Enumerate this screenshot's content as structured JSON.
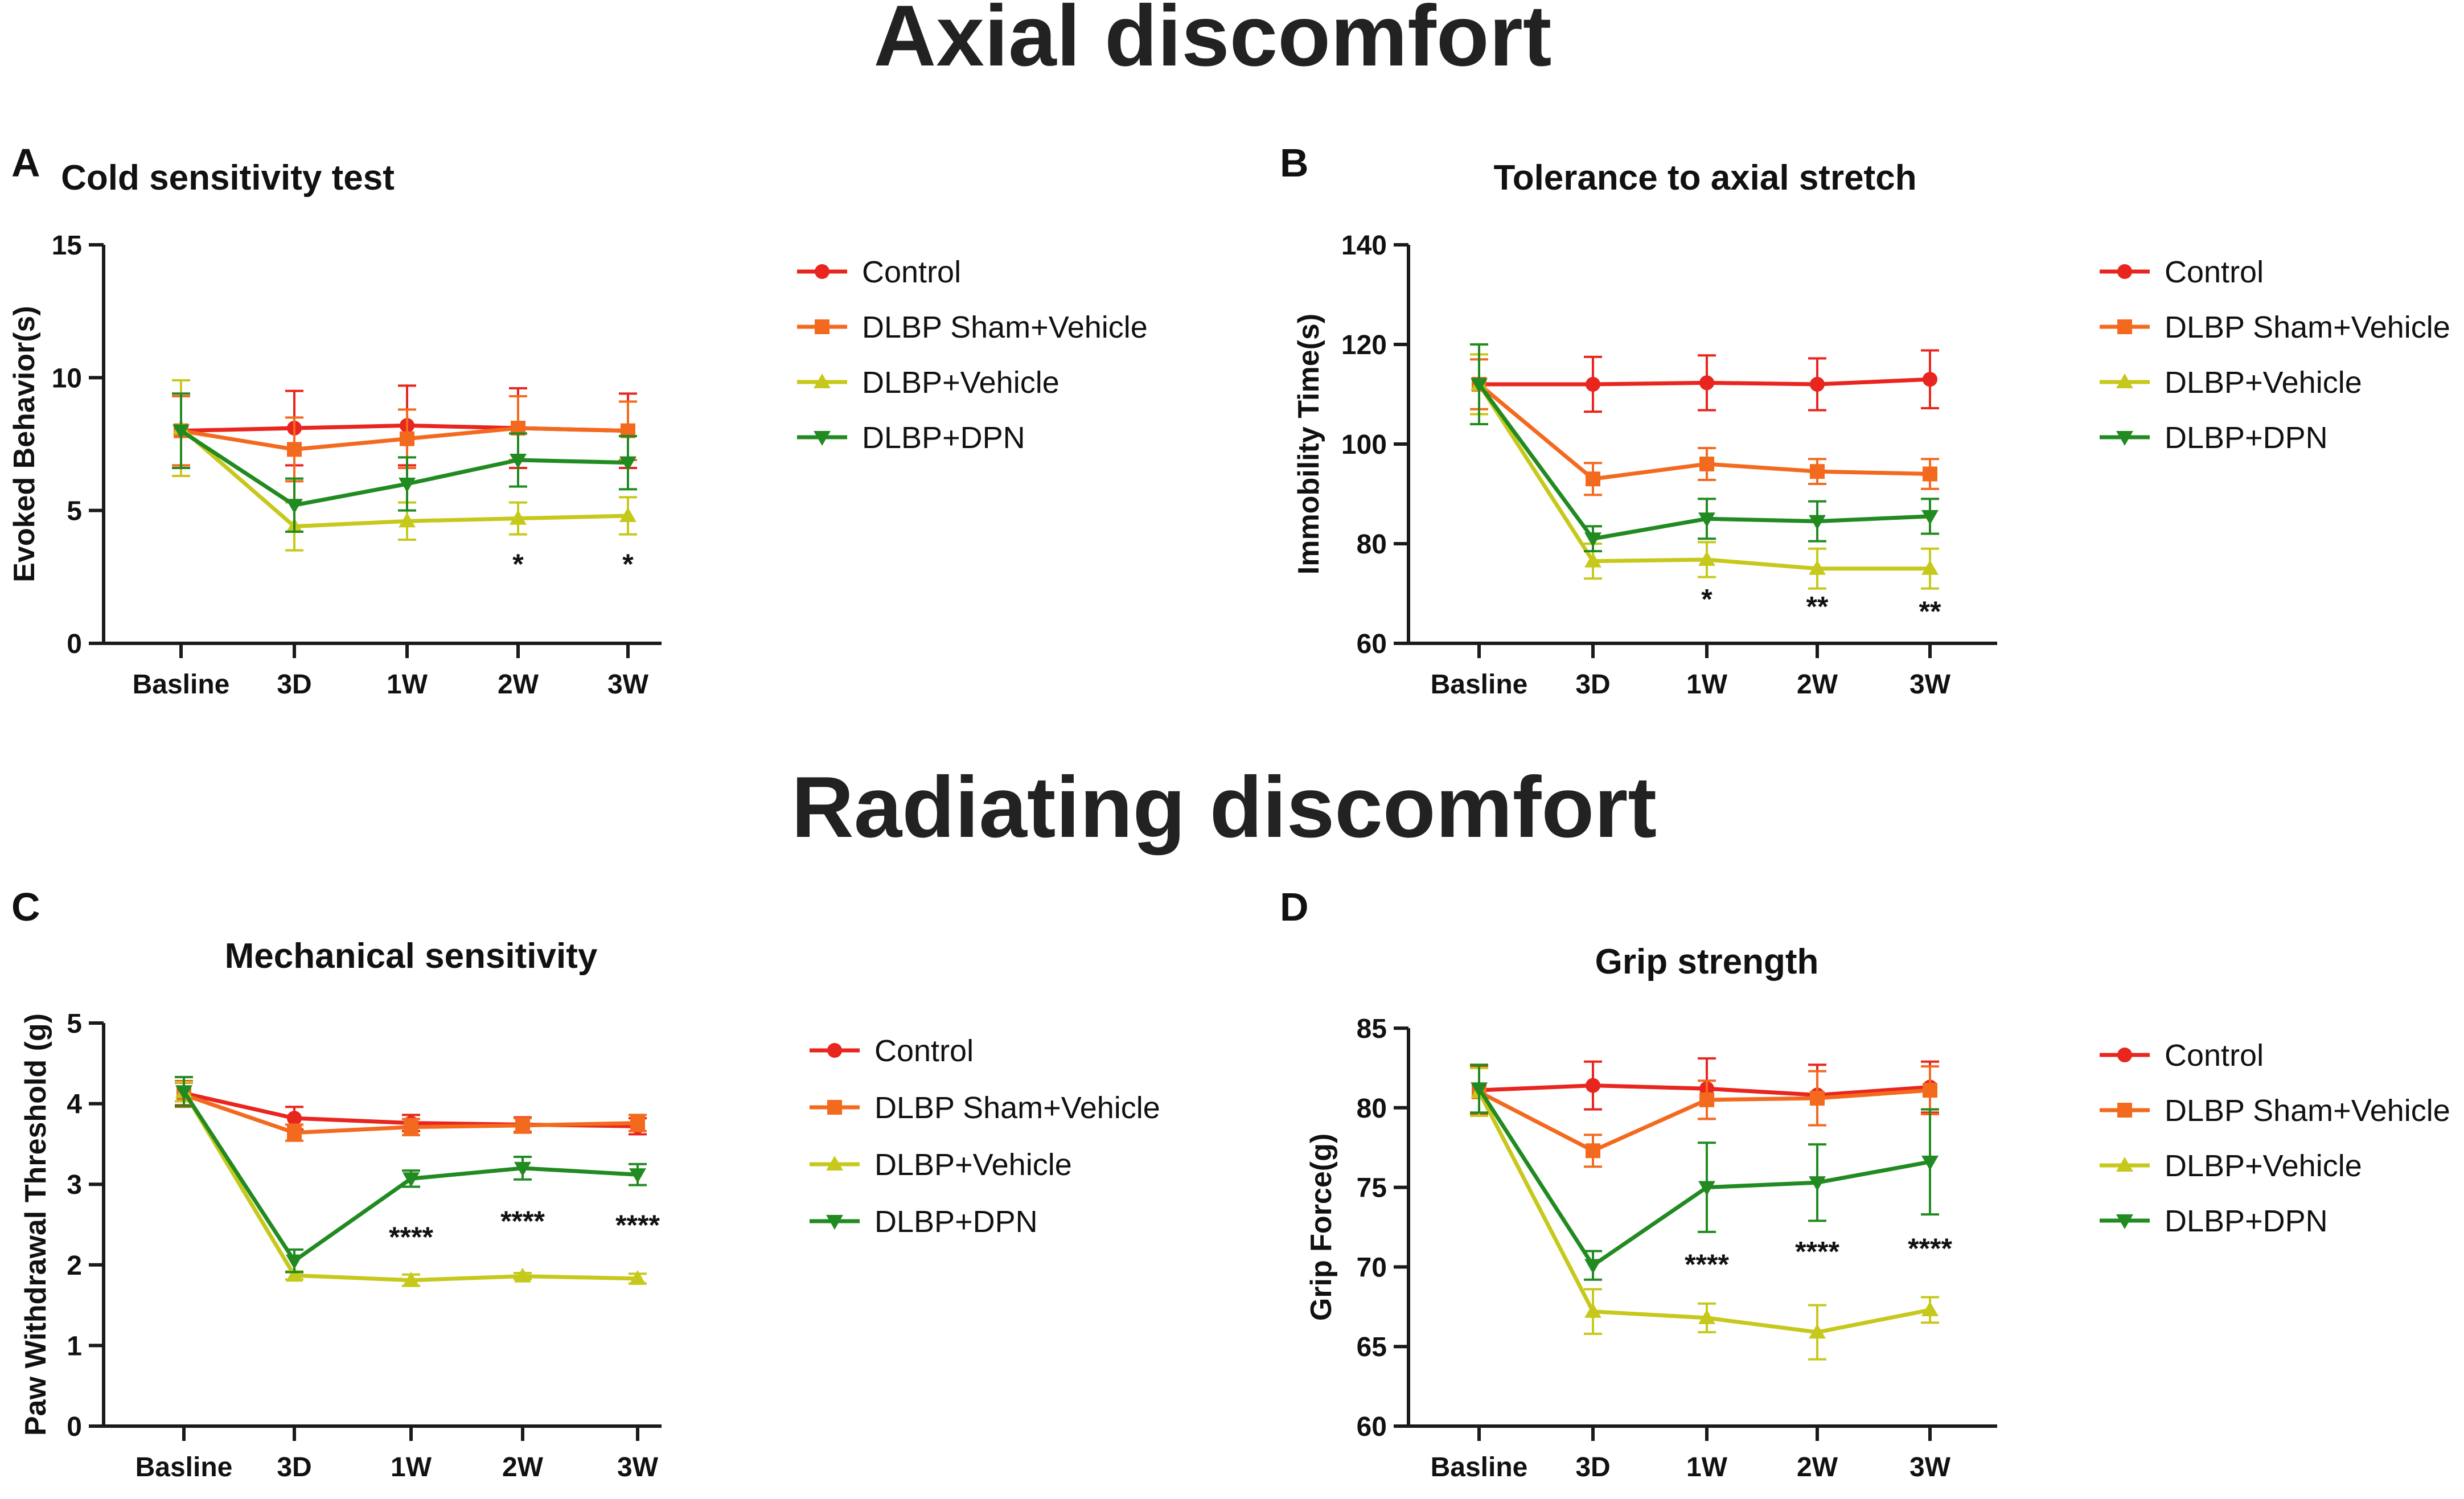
{
  "sections": {
    "top": "Axial discomfort",
    "bottom": "Radiating  discomfort"
  },
  "colors": {
    "Control": "#e8251e",
    "DLBP Sham+Vehicle": "#f36a1f",
    "DLBP+Vehicle": "#c7c81c",
    "DLBP+DPN": "#218a21"
  },
  "chart_data": [
    {
      "letter": "A",
      "type": "line",
      "title": "Cold sensitivity test",
      "xlabel": "",
      "ylabel": "Evoked Behavior(s)",
      "categories": [
        "Basline",
        "3D",
        "1W",
        "2W",
        "3W"
      ],
      "ylim": [
        0,
        15
      ],
      "yticks": [
        0,
        5,
        10,
        15
      ],
      "legend_position": "right",
      "series": [
        {
          "name": "Control",
          "marker": "circle",
          "values": [
            8.0,
            8.1,
            8.2,
            8.1,
            8.0
          ],
          "errors": [
            1.4,
            1.4,
            1.5,
            1.5,
            1.4
          ]
        },
        {
          "name": "DLBP Sham+Vehicle",
          "marker": "square",
          "values": [
            8.0,
            7.3,
            7.7,
            8.1,
            8.0
          ],
          "errors": [
            1.3,
            1.2,
            1.1,
            1.2,
            1.1
          ]
        },
        {
          "name": "DLBP+Vehicle",
          "marker": "triangle-up",
          "values": [
            8.1,
            4.4,
            4.6,
            4.7,
            4.8
          ],
          "errors": [
            1.8,
            0.9,
            0.7,
            0.6,
            0.7
          ]
        },
        {
          "name": "DLBP+DPN",
          "marker": "triangle-down",
          "values": [
            8.0,
            5.2,
            6.0,
            6.9,
            6.8
          ],
          "errors": [
            1.4,
            1.0,
            1.0,
            1.0,
            1.0
          ]
        }
      ],
      "annotations": [
        {
          "category": "2W",
          "value": 3.0,
          "text": "*"
        },
        {
          "category": "3W",
          "value": 3.0,
          "text": "*"
        }
      ]
    },
    {
      "letter": "B",
      "type": "line",
      "title": "Tolerance to axial stretch",
      "xlabel": "",
      "ylabel": "Immobility Time(s)",
      "categories": [
        "Basline",
        "3D",
        "1W",
        "2W",
        "3W"
      ],
      "ylim": [
        60,
        140
      ],
      "yticks": [
        60,
        80,
        100,
        120,
        140
      ],
      "legend_position": "right",
      "series": [
        {
          "name": "Control",
          "marker": "circle",
          "values": [
            112,
            112,
            112.3,
            112,
            113
          ],
          "errors": [
            6,
            5.5,
            5.5,
            5.2,
            5.8
          ]
        },
        {
          "name": "DLBP Sham+Vehicle",
          "marker": "square",
          "values": [
            112,
            93,
            96,
            94.5,
            94
          ],
          "errors": [
            5,
            3.2,
            3.2,
            2.5,
            3
          ]
        },
        {
          "name": "DLBP+Vehicle",
          "marker": "triangle-up",
          "values": [
            112,
            76.5,
            76.8,
            75,
            75
          ],
          "errors": [
            6,
            3.5,
            3.5,
            4,
            4
          ]
        },
        {
          "name": "DLBP+DPN",
          "marker": "triangle-down",
          "values": [
            112,
            81,
            85,
            84.5,
            85.5
          ],
          "errors": [
            8,
            2.5,
            4,
            4,
            3.5
          ]
        }
      ],
      "annotations": [
        {
          "category": "1W",
          "value": 69,
          "text": "*"
        },
        {
          "category": "2W",
          "value": 67.5,
          "text": "**"
        },
        {
          "category": "3W",
          "value": 66.5,
          "text": "**"
        }
      ]
    },
    {
      "letter": "C",
      "type": "line",
      "title": "Mechanical sensitivity",
      "xlabel": "",
      "ylabel": "Paw Withdrawal Threshold (g)",
      "categories": [
        "Basline",
        "3D",
        "1W",
        "2W",
        "3W"
      ],
      "ylim": [
        0,
        5
      ],
      "yticks": [
        0,
        1,
        2,
        3,
        4,
        5
      ],
      "legend_position": "right",
      "series": [
        {
          "name": "Control",
          "marker": "circle",
          "values": [
            4.13,
            3.82,
            3.76,
            3.74,
            3.72
          ],
          "errors": [
            0.15,
            0.14,
            0.1,
            0.09,
            0.1
          ]
        },
        {
          "name": "DLBP Sham+Vehicle",
          "marker": "square",
          "values": [
            4.11,
            3.64,
            3.71,
            3.73,
            3.76
          ],
          "errors": [
            0.15,
            0.1,
            0.1,
            0.09,
            0.1
          ]
        },
        {
          "name": "DLBP+Vehicle",
          "marker": "triangle-up",
          "values": [
            4.15,
            1.87,
            1.81,
            1.86,
            1.83
          ],
          "errors": [
            0.12,
            0.05,
            0.07,
            0.04,
            0.06
          ]
        },
        {
          "name": "DLBP+DPN",
          "marker": "triangle-down",
          "values": [
            4.15,
            2.05,
            3.07,
            3.2,
            3.12
          ],
          "errors": [
            0.18,
            0.14,
            0.1,
            0.14,
            0.13
          ]
        }
      ],
      "annotations": [
        {
          "category": "1W",
          "value": 2.35,
          "text": "****"
        },
        {
          "category": "2W",
          "value": 2.55,
          "text": "****"
        },
        {
          "category": "3W",
          "value": 2.5,
          "text": "****"
        }
      ]
    },
    {
      "letter": "D",
      "type": "line",
      "title": "Grip strength",
      "xlabel": "",
      "ylabel": "Grip Force(g)",
      "categories": [
        "Basline",
        "3D",
        "1W",
        "2W",
        "3W"
      ],
      "ylim": [
        60,
        85
      ],
      "yticks": [
        60,
        65,
        70,
        75,
        80,
        85
      ],
      "legend_position": "right",
      "series": [
        {
          "name": "Control",
          "marker": "circle",
          "values": [
            81.1,
            81.4,
            81.2,
            80.8,
            81.3
          ],
          "errors": [
            1.5,
            1.5,
            1.9,
            1.9,
            1.6
          ]
        },
        {
          "name": "DLBP Sham+Vehicle",
          "marker": "square",
          "values": [
            81.0,
            77.3,
            80.5,
            80.6,
            81.1
          ],
          "errors": [
            1.5,
            1.0,
            1.2,
            1.7,
            1.5
          ]
        },
        {
          "name": "DLBP+Vehicle",
          "marker": "triangle-up",
          "values": [
            81.0,
            67.2,
            66.8,
            65.9,
            67.3
          ],
          "errors": [
            1.5,
            1.4,
            0.9,
            1.7,
            0.8
          ]
        },
        {
          "name": "DLBP+DPN",
          "marker": "triangle-down",
          "values": [
            81.2,
            70.1,
            75.0,
            75.3,
            76.6
          ],
          "errors": [
            1.5,
            0.9,
            2.8,
            2.4,
            3.3
          ]
        }
      ],
      "annotations": [
        {
          "category": "1W",
          "value": 70.2,
          "text": "****"
        },
        {
          "category": "2W",
          "value": 71.0,
          "text": "****"
        },
        {
          "category": "3W",
          "value": 71.2,
          "text": "****"
        }
      ]
    }
  ]
}
